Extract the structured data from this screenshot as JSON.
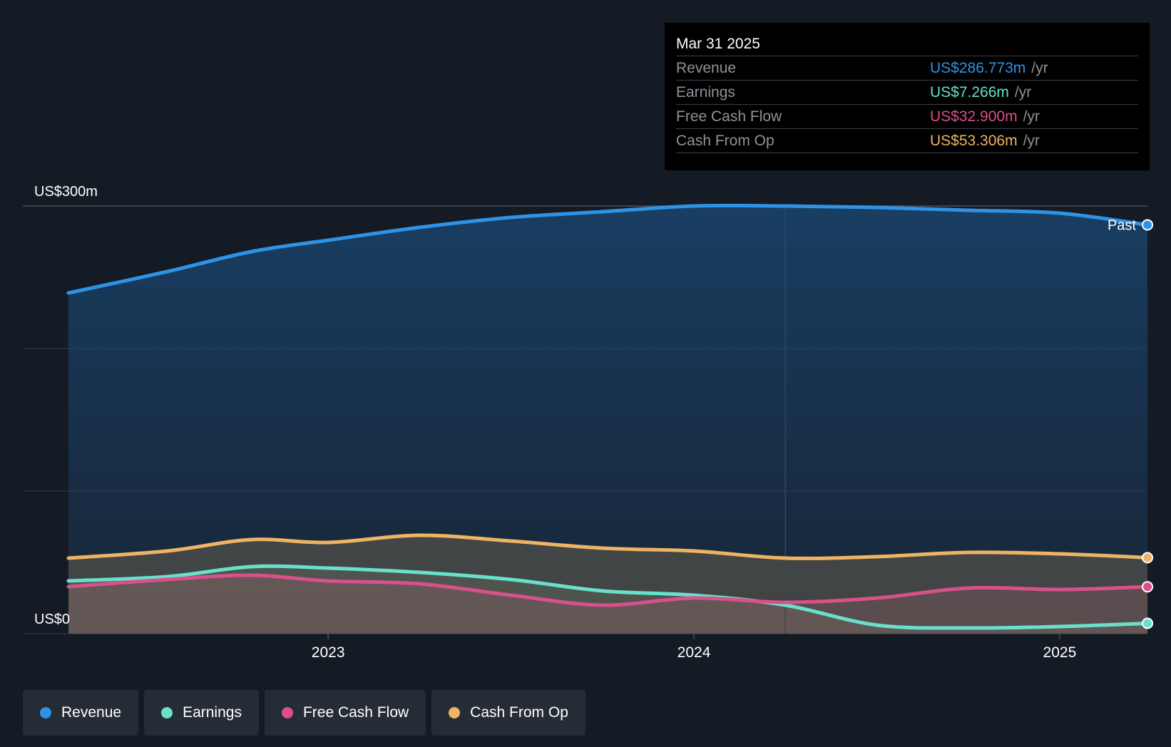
{
  "tooltip": {
    "date": "Mar 31 2025",
    "rows": [
      {
        "label": "Revenue",
        "value": "US$286.773m",
        "unit": "/yr",
        "color": "#2e93e6"
      },
      {
        "label": "Earnings",
        "value": "US$7.266m",
        "unit": "/yr",
        "color": "#68e0cc"
      },
      {
        "label": "Free Cash Flow",
        "value": "US$32.900m",
        "unit": "/yr",
        "color": "#d9508a"
      },
      {
        "label": "Cash From Op",
        "value": "US$53.306m",
        "unit": "/yr",
        "color": "#eeb462"
      }
    ]
  },
  "legend": [
    {
      "label": "Revenue",
      "color": "#2e93e6"
    },
    {
      "label": "Earnings",
      "color": "#68e0cc"
    },
    {
      "label": "Free Cash Flow",
      "color": "#d9508a"
    },
    {
      "label": "Cash From Op",
      "color": "#eeb462"
    }
  ],
  "chart_data": {
    "type": "area",
    "x": [
      2022.29,
      2022.56,
      2022.79,
      2023.0,
      2023.25,
      2023.5,
      2023.75,
      2024.0,
      2024.25,
      2024.5,
      2024.75,
      2025.0,
      2025.24
    ],
    "series": [
      {
        "name": "Revenue",
        "color": "#2e93e6",
        "values": [
          239,
          254,
          268,
          276,
          285,
          292,
          296,
          300,
          300,
          299,
          297,
          295,
          286.773
        ]
      },
      {
        "name": "Earnings",
        "color": "#68e0cc",
        "values": [
          37,
          40,
          47,
          46,
          43,
          38,
          30,
          27,
          20,
          6,
          4,
          5,
          7.266
        ]
      },
      {
        "name": "Free Cash Flow",
        "color": "#d9508a",
        "values": [
          33,
          38,
          41,
          37,
          35,
          27,
          20,
          25,
          22,
          25,
          32,
          31,
          32.9
        ]
      },
      {
        "name": "Cash From Op",
        "color": "#eeb462",
        "values": [
          53,
          58,
          66,
          64,
          69,
          65,
          60,
          58,
          53,
          54,
          57,
          56,
          53.306
        ]
      }
    ],
    "x_ticks": [
      {
        "value": 2023.0,
        "label": "2023"
      },
      {
        "value": 2024.0,
        "label": "2024"
      },
      {
        "value": 2025.0,
        "label": "2025"
      }
    ],
    "y_labels": [
      {
        "value": 300,
        "label": "US$300m"
      },
      {
        "value": 0,
        "label": "US$0"
      }
    ],
    "ylim": [
      0,
      300
    ],
    "xlim": [
      2022.17,
      2025.24
    ],
    "gridlines": [
      0,
      100,
      200,
      300
    ],
    "past_label": "Past",
    "past_divider_x": 2024.25
  }
}
